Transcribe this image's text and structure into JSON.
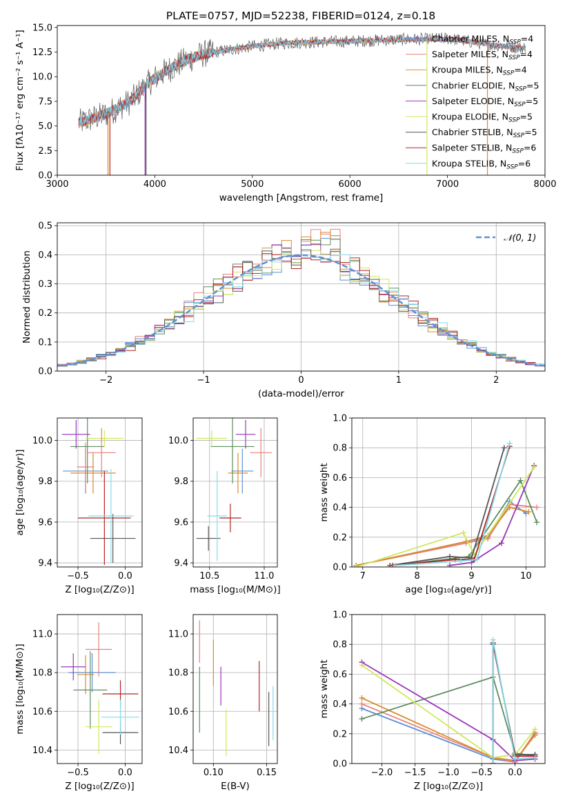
{
  "figure": {
    "title": "PLATE=0757, MJD=52238, FIBERID=0124, z=0.18"
  },
  "colors": {
    "chabrier_miles": "#5b8fd6",
    "salpeter_miles": "#e8807a",
    "kroupa_miles": "#d98a2b",
    "chabrier_elodie": "#5e8c5e",
    "salpeter_elodie": "#9a35b8",
    "kroupa_elodie": "#cde85a",
    "chabrier_stelib": "#555555",
    "salpeter_stelib": "#b22222",
    "kroupa_stelib": "#7fdcea",
    "normal_curve": "#5b8fd6",
    "grid": "#b0b0b0"
  },
  "chart_data": [
    {
      "id": "spectrum",
      "type": "line",
      "title": "PLATE=0757, MJD=52238, FIBERID=0124, z=0.18",
      "xlabel": "wavelength [Angstrom, rest frame]",
      "ylabel": "Flux [fλ10⁻¹⁷ erg cm⁻² s⁻¹ A⁻¹]",
      "xlim": [
        3000,
        8000
      ],
      "ylim": [
        0,
        15.2
      ],
      "xticks": [
        3000,
        4000,
        5000,
        6000,
        7000,
        8000
      ],
      "yticks": [
        0.0,
        2.5,
        5.0,
        7.5,
        10.0,
        12.5,
        15.0
      ],
      "grid": false,
      "legend_placement": "upper right",
      "legend": [
        {
          "label": "Chabrier MILES, N_SSP=4",
          "color": "#5b8fd6"
        },
        {
          "label": "Salpeter MILES, N_SSP=4",
          "color": "#e8807a"
        },
        {
          "label": "Kroupa MILES, N_SSP=4",
          "color": "#d98a2b"
        },
        {
          "label": "Chabrier ELODIE, N_SSP=5",
          "color": "#5e8c5e"
        },
        {
          "label": "Salpeter ELODIE, N_SSP=5",
          "color": "#9a35b8"
        },
        {
          "label": "Kroupa ELODIE, N_SSP=5",
          "color": "#cde85a"
        },
        {
          "label": "Chabrier STELIB, N_SSP=5",
          "color": "#555555"
        },
        {
          "label": "Salpeter STELIB, N_SSP=6",
          "color": "#b22222"
        },
        {
          "label": "Kroupa STELIB, N_SSP=6",
          "color": "#7fdcea"
        }
      ],
      "continuum": {
        "x": [
          3220,
          3500,
          3750,
          3950,
          4100,
          4300,
          4500,
          4800,
          5000,
          5300,
          5600,
          6000,
          6300,
          6600,
          6800,
          7000,
          7200,
          7400,
          7600,
          7800
        ],
        "y": [
          5.3,
          6.2,
          7.5,
          9.5,
          10.5,
          11.6,
          12.3,
          12.8,
          13.1,
          13.4,
          13.5,
          13.6,
          13.7,
          13.8,
          13.8,
          13.9,
          13.6,
          13.3,
          13.1,
          12.9
        ]
      },
      "drops": [
        {
          "model": "salpeter_stelib",
          "x": 3540
        },
        {
          "model": "kroupa_miles",
          "x": 3520
        },
        {
          "model": "salpeter_elodie",
          "x": 3900
        },
        {
          "model": "chabrier_stelib",
          "x": 3910
        },
        {
          "model": "kroupa_elodie",
          "x": 6790
        },
        {
          "model": "kroupa_miles",
          "x": 7410
        }
      ]
    },
    {
      "id": "residuals",
      "type": "histogram",
      "xlabel": "(data-model)/error",
      "ylabel": "Normed distribution",
      "xlim": [
        -2.5,
        2.5
      ],
      "ylim": [
        0,
        0.51
      ],
      "xticks": [
        -2,
        -1,
        0,
        1,
        2
      ],
      "yticks": [
        0.0,
        0.1,
        0.2,
        0.3,
        0.4,
        0.5
      ],
      "grid": true,
      "legend_placement": "upper right",
      "legend": [
        {
          "label": "𝒩(0, 1)",
          "color": "#5b8fd6",
          "style": "dashed"
        }
      ],
      "bin_width": 0.1,
      "peak_values": [
        0.47,
        0.49,
        0.48,
        0.46,
        0.44,
        0.43,
        0.42,
        0.41,
        0.4
      ],
      "normal": {
        "mean": 0,
        "sigma": 1
      }
    },
    {
      "id": "age_vs_Z",
      "type": "errorbar",
      "xlabel": "Z [log₁₀(Z/Z⊙)]",
      "ylabel": "age  [log₁₀(age/yr)]",
      "xlim": [
        -0.72,
        0.18
      ],
      "ylim": [
        9.38,
        10.11
      ],
      "xticks": [
        -0.5,
        0.0
      ],
      "xtick_labels": [
        "−0.5",
        "0.0"
      ],
      "yticks": [
        9.4,
        9.6,
        9.8,
        10.0
      ],
      "yticks_labels": [
        "9.4",
        "9.6",
        "9.8",
        "10.0"
      ],
      "grid": true,
      "points": [
        {
          "model": "chabrier_miles",
          "x": -0.42,
          "y": 9.85,
          "xerr": 0.24,
          "yerr": 0.11
        },
        {
          "model": "salpeter_miles",
          "x": -0.42,
          "y": 9.87,
          "xerr": 0.09,
          "yerr": 0.12
        },
        {
          "model": "kroupa_miles",
          "x": -0.34,
          "y": 9.84,
          "xerr": 0.24,
          "yerr": 0.1
        },
        {
          "model": "chabrier_elodie",
          "x": -0.4,
          "y": 9.97,
          "xerr": 0.18,
          "yerr": 0.18
        },
        {
          "model": "salpeter_elodie",
          "x": -0.52,
          "y": 10.03,
          "xerr": 0.15,
          "yerr": 0.07
        },
        {
          "model": "kroupa_elodie",
          "x": -0.22,
          "y": 10.01,
          "xerr": 0.2,
          "yerr": 0.04
        },
        {
          "model": "chabrier_stelib",
          "x": -0.13,
          "y": 9.52,
          "xerr": 0.24,
          "yerr": 0.12
        },
        {
          "model": "salpeter_stelib",
          "x": -0.22,
          "y": 9.62,
          "xerr": 0.28,
          "yerr": 0.23
        },
        {
          "model": "kroupa_stelib",
          "x": -0.15,
          "y": 9.63,
          "xerr": 0.24,
          "yerr": 0.23
        },
        {
          "model": "salpeter_miles",
          "x": -0.25,
          "y": 9.94,
          "xerr": 0.15,
          "yerr": 0.12
        }
      ]
    },
    {
      "id": "age_vs_mass",
      "type": "errorbar",
      "xlabel": "mass [log₁₀(M/M⊙)]",
      "ylabel": "",
      "xlim": [
        10.35,
        11.12
      ],
      "ylim": [
        9.38,
        10.11
      ],
      "xticks": [
        10.5,
        11.0
      ],
      "xtick_labels": [
        "10.5",
        "11.0"
      ],
      "yticks": [
        9.4,
        9.6,
        9.8,
        10.0
      ],
      "yticks_labels": [
        "9.4",
        "9.6",
        "9.8",
        "10.0"
      ],
      "grid": true,
      "points": [
        {
          "model": "chabrier_miles",
          "x": 10.8,
          "y": 9.85,
          "xerr": 0.1,
          "yerr": 0.11
        },
        {
          "model": "salpeter_miles",
          "x": 10.97,
          "y": 9.94,
          "xerr": 0.1,
          "yerr": 0.12
        },
        {
          "model": "kroupa_miles",
          "x": 10.76,
          "y": 9.84,
          "xerr": 0.09,
          "yerr": 0.1
        },
        {
          "model": "chabrier_elodie",
          "x": 10.71,
          "y": 9.97,
          "xerr": 0.2,
          "yerr": 0.18
        },
        {
          "model": "salpeter_elodie",
          "x": 10.83,
          "y": 10.03,
          "xerr": 0.09,
          "yerr": 0.07
        },
        {
          "model": "kroupa_elodie",
          "x": 10.52,
          "y": 10.01,
          "xerr": 0.14,
          "yerr": 0.04
        },
        {
          "model": "chabrier_stelib",
          "x": 10.49,
          "y": 9.52,
          "xerr": 0.11,
          "yerr": 0.06
        },
        {
          "model": "salpeter_stelib",
          "x": 10.69,
          "y": 9.62,
          "xerr": 0.1,
          "yerr": 0.07
        },
        {
          "model": "kroupa_stelib",
          "x": 10.57,
          "y": 9.63,
          "xerr": 0.09,
          "yerr": 0.22
        }
      ]
    },
    {
      "id": "weight_vs_age",
      "type": "line",
      "xlabel": "age  [log₁₀(age/yr)]",
      "ylabel": "mass weight",
      "xlim": [
        6.8,
        10.35
      ],
      "ylim": [
        0,
        1.0
      ],
      "xticks": [
        7,
        8,
        9,
        10
      ],
      "yticks": [
        0.0,
        0.2,
        0.4,
        0.6,
        0.8,
        1.0
      ],
      "grid": true,
      "series": [
        {
          "model": "chabrier_miles",
          "x": [
            6.88,
            8.9,
            9.3,
            9.7,
            10.0
          ],
          "y": [
            0.01,
            0.17,
            0.2,
            0.44,
            0.36
          ]
        },
        {
          "model": "salpeter_miles",
          "x": [
            6.88,
            8.9,
            9.3,
            9.7,
            10.2
          ],
          "y": [
            0.01,
            0.16,
            0.19,
            0.42,
            0.4
          ]
        },
        {
          "model": "kroupa_miles",
          "x": [
            6.88,
            8.9,
            9.3,
            9.7,
            10.05
          ],
          "y": [
            0.01,
            0.17,
            0.21,
            0.4,
            0.37
          ]
        },
        {
          "model": "chabrier_elodie",
          "x": [
            7.6,
            8.95,
            9.9,
            10.2
          ],
          "y": [
            0.01,
            0.07,
            0.58,
            0.3
          ]
        },
        {
          "model": "salpeter_elodie",
          "x": [
            8.6,
            9.0,
            9.55,
            10.15
          ],
          "y": [
            0.01,
            0.03,
            0.16,
            0.68
          ]
        },
        {
          "model": "kroupa_elodie",
          "x": [
            6.88,
            8.85,
            9.05,
            10.15
          ],
          "y": [
            0.0,
            0.23,
            0.08,
            0.67
          ]
        },
        {
          "model": "chabrier_stelib",
          "x": [
            7.5,
            8.6,
            9.0,
            9.6
          ],
          "y": [
            0.01,
            0.07,
            0.06,
            0.8
          ]
        },
        {
          "model": "salpeter_stelib",
          "x": [
            7.55,
            8.7,
            9.05,
            9.7
          ],
          "y": [
            0.01,
            0.05,
            0.05,
            0.81
          ]
        },
        {
          "model": "kroupa_stelib",
          "x": [
            7.6,
            8.8,
            9.1,
            9.7
          ],
          "y": [
            0.01,
            0.04,
            0.05,
            0.83
          ]
        }
      ]
    },
    {
      "id": "mass_vs_Z",
      "type": "errorbar",
      "xlabel": "Z [log₁₀(Z/Z⊙)]",
      "ylabel": "mass [log₁₀(M/M⊙)]",
      "xlim": [
        -0.72,
        0.18
      ],
      "ylim": [
        10.33,
        11.1
      ],
      "xticks": [
        -0.5,
        0.0
      ],
      "xtick_labels": [
        "−0.5",
        "0.0"
      ],
      "yticks": [
        10.4,
        10.6,
        10.8,
        11.0
      ],
      "yticks_labels": [
        "10.4",
        "10.6",
        "10.8",
        "11.0"
      ],
      "grid": true,
      "points": [
        {
          "model": "chabrier_miles",
          "x": -0.35,
          "y": 10.8,
          "xerr": 0.25,
          "yerr": 0.1
        },
        {
          "model": "salpeter_miles",
          "x": -0.28,
          "y": 10.92,
          "xerr": 0.14,
          "yerr": 0.14
        },
        {
          "model": "kroupa_miles",
          "x": -0.42,
          "y": 10.79,
          "xerr": 0.09,
          "yerr": 0.1
        },
        {
          "model": "chabrier_elodie",
          "x": -0.37,
          "y": 10.71,
          "xerr": 0.18,
          "yerr": 0.2
        },
        {
          "model": "salpeter_elodie",
          "x": -0.55,
          "y": 10.83,
          "xerr": 0.13,
          "yerr": 0.07
        },
        {
          "model": "kroupa_elodie",
          "x": -0.28,
          "y": 10.52,
          "xerr": 0.14,
          "yerr": 0.14
        },
        {
          "model": "chabrier_stelib",
          "x": -0.05,
          "y": 10.49,
          "xerr": 0.19,
          "yerr": 0.06
        },
        {
          "model": "salpeter_stelib",
          "x": -0.05,
          "y": 10.69,
          "xerr": 0.19,
          "yerr": 0.07
        },
        {
          "model": "kroupa_stelib",
          "x": -0.05,
          "y": 10.57,
          "xerr": 0.2,
          "yerr": 0.09
        }
      ]
    },
    {
      "id": "mass_vs_ebv",
      "type": "errorbar",
      "xlabel": "E(B-V)",
      "ylabel": "",
      "xlim": [
        0.081,
        0.16
      ],
      "ylim": [
        10.33,
        11.1
      ],
      "xticks": [
        0.1,
        0.15
      ],
      "xtick_labels": [
        "0.10",
        "0.15"
      ],
      "yticks": [
        10.4,
        10.6,
        10.8,
        11.0
      ],
      "yticks_labels": [
        "10.4",
        "10.6",
        "10.8",
        "11.0"
      ],
      "grid": true,
      "points": [
        {
          "model": "salpeter_miles",
          "x": 0.087,
          "y": 10.96,
          "xerr": 0.0,
          "yerr": 0.11
        },
        {
          "model": "chabrier_elodie",
          "x": 0.087,
          "y": 10.66,
          "xerr": 0.0,
          "yerr": 0.17
        },
        {
          "model": "kroupa_miles",
          "x": 0.1,
          "y": 10.85,
          "xerr": 0.0,
          "yerr": 0.12
        },
        {
          "model": "salpeter_elodie",
          "x": 0.107,
          "y": 10.73,
          "xerr": 0.0,
          "yerr": 0.1
        },
        {
          "model": "kroupa_elodie",
          "x": 0.112,
          "y": 10.49,
          "xerr": 0.0,
          "yerr": 0.12
        },
        {
          "model": "salpeter_stelib",
          "x": 0.143,
          "y": 10.73,
          "xerr": 0.0,
          "yerr": 0.13
        },
        {
          "model": "chabrier_stelib",
          "x": 0.152,
          "y": 10.56,
          "xerr": 0.0,
          "yerr": 0.14
        },
        {
          "model": "kroupa_stelib",
          "x": 0.156,
          "y": 10.59,
          "xerr": 0.0,
          "yerr": 0.14
        }
      ]
    },
    {
      "id": "weight_vs_Z",
      "type": "line",
      "xlabel": "Z [log₁₀(Z/Z⊙)]",
      "ylabel": "mass weight",
      "xlim": [
        -2.45,
        0.45
      ],
      "ylim": [
        0,
        1.0
      ],
      "xticks": [
        -2.0,
        -1.5,
        -1.0,
        -0.5,
        0.0
      ],
      "xtick_labels": [
        "−2.0",
        "−1.5",
        "−1.0",
        "−0.5",
        "0.0"
      ],
      "yticks": [
        0.0,
        0.2,
        0.4,
        0.6,
        0.8,
        1.0
      ],
      "grid": true,
      "series": [
        {
          "model": "chabrier_miles",
          "x": [
            -2.3,
            -0.33,
            0.0,
            0.3
          ],
          "y": [
            0.37,
            0.03,
            0.01,
            0.2
          ]
        },
        {
          "model": "salpeter_miles",
          "x": [
            -2.3,
            -0.33,
            0.0,
            0.3
          ],
          "y": [
            0.4,
            0.04,
            0.01,
            0.21
          ]
        },
        {
          "model": "kroupa_miles",
          "x": [
            -2.3,
            -0.33,
            0.0,
            0.3
          ],
          "y": [
            0.44,
            0.04,
            0.02,
            0.19
          ]
        },
        {
          "model": "chabrier_elodie",
          "x": [
            -2.3,
            -0.33,
            0.0,
            0.3
          ],
          "y": [
            0.3,
            0.58,
            0.07,
            0.05
          ]
        },
        {
          "model": "salpeter_elodie",
          "x": [
            -2.3,
            -0.33,
            0.0,
            0.3
          ],
          "y": [
            0.68,
            0.16,
            0.02,
            0.03
          ]
        },
        {
          "model": "kroupa_elodie",
          "x": [
            -2.3,
            -0.33,
            0.0,
            0.3
          ],
          "y": [
            0.66,
            0.04,
            0.06,
            0.23
          ]
        },
        {
          "model": "chabrier_stelib",
          "x": [
            -0.33,
            -0.33,
            0.0,
            0.3
          ],
          "y": [
            0.0,
            0.8,
            0.06,
            0.06
          ]
        },
        {
          "model": "salpeter_stelib",
          "x": [
            -0.33,
            -0.33,
            0.0,
            0.3
          ],
          "y": [
            0.0,
            0.81,
            0.05,
            0.05
          ]
        },
        {
          "model": "kroupa_stelib",
          "x": [
            -0.33,
            -0.33,
            0.0,
            0.3
          ],
          "y": [
            0.0,
            0.83,
            0.03,
            0.04
          ]
        }
      ]
    }
  ]
}
